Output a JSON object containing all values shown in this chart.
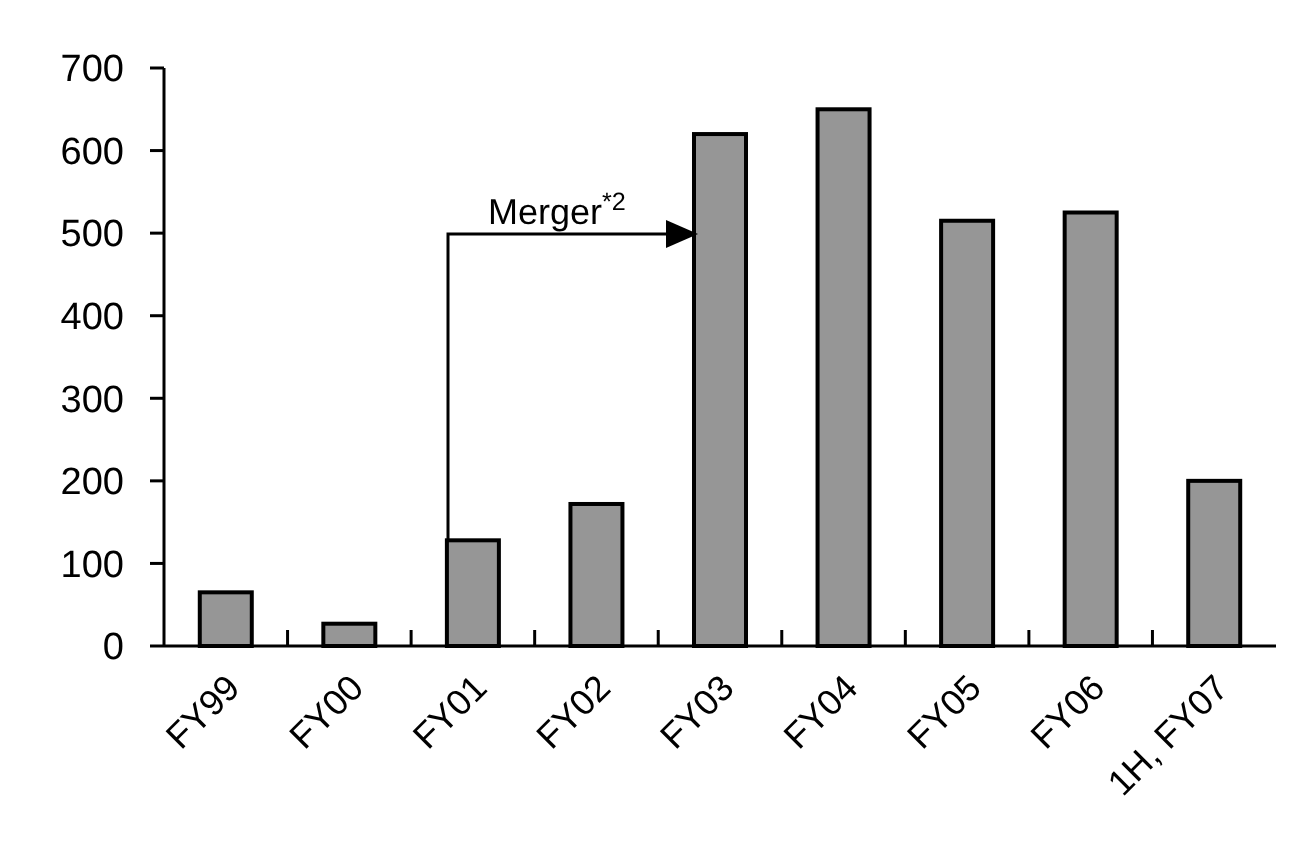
{
  "chart_data": {
    "type": "bar",
    "categories": [
      "FY99",
      "FY00",
      "FY01",
      "FY02",
      "FY03",
      "FY04",
      "FY05",
      "FY06",
      "1H, FY07"
    ],
    "values": [
      65,
      27,
      128,
      172,
      620,
      650,
      515,
      525,
      200
    ],
    "color": "#969696",
    "ylim": [
      0,
      700
    ],
    "yticks": [
      0,
      100,
      200,
      300,
      400,
      500,
      600,
      700
    ],
    "grid": false,
    "annotations": [
      "Merger$^{*2}$"
    ]
  }
}
